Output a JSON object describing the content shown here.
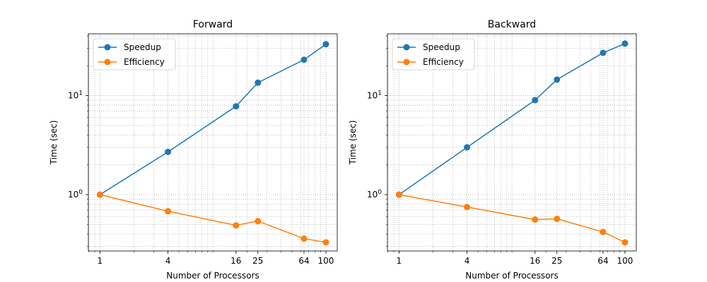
{
  "chart_data": [
    {
      "type": "line",
      "title": "Forward",
      "xlabel": "Number of Processors",
      "ylabel": "Time (sec)",
      "x_scale": "log",
      "y_scale": "log",
      "x_ticks": [
        1,
        4,
        16,
        25,
        64,
        100
      ],
      "y_ticks": [
        {
          "value": 1,
          "base": "10",
          "exp": "0"
        },
        {
          "value": 10,
          "base": "10",
          "exp": "1"
        }
      ],
      "xlim": [
        0.79,
        126
      ],
      "ylim": [
        0.27,
        42
      ],
      "grid": true,
      "legend_position": "upper-left",
      "x": [
        1,
        4,
        16,
        25,
        64,
        100
      ],
      "series": [
        {
          "name": "Speedup",
          "color": "#1f77b4",
          "values": [
            1.0,
            2.7,
            7.8,
            13.5,
            23.0,
            33.0
          ]
        },
        {
          "name": "Efficiency",
          "color": "#ff7f0e",
          "values": [
            1.0,
            0.68,
            0.49,
            0.54,
            0.36,
            0.33
          ]
        }
      ]
    },
    {
      "type": "line",
      "title": "Backward",
      "xlabel": "Number of Processors",
      "ylabel": "Time (sec)",
      "x_scale": "log",
      "y_scale": "log",
      "x_ticks": [
        1,
        4,
        16,
        25,
        64,
        100
      ],
      "y_ticks": [
        {
          "value": 1,
          "base": "10",
          "exp": "0"
        },
        {
          "value": 10,
          "base": "10",
          "exp": "1"
        }
      ],
      "xlim": [
        0.79,
        126
      ],
      "ylim": [
        0.27,
        42
      ],
      "grid": true,
      "legend_position": "upper-left",
      "x": [
        1,
        4,
        16,
        25,
        64,
        100
      ],
      "series": [
        {
          "name": "Speedup",
          "color": "#1f77b4",
          "values": [
            1.0,
            3.0,
            9.0,
            14.5,
            27.0,
            33.5
          ]
        },
        {
          "name": "Efficiency",
          "color": "#ff7f0e",
          "values": [
            1.0,
            0.75,
            0.56,
            0.57,
            0.42,
            0.33
          ]
        }
      ]
    }
  ]
}
